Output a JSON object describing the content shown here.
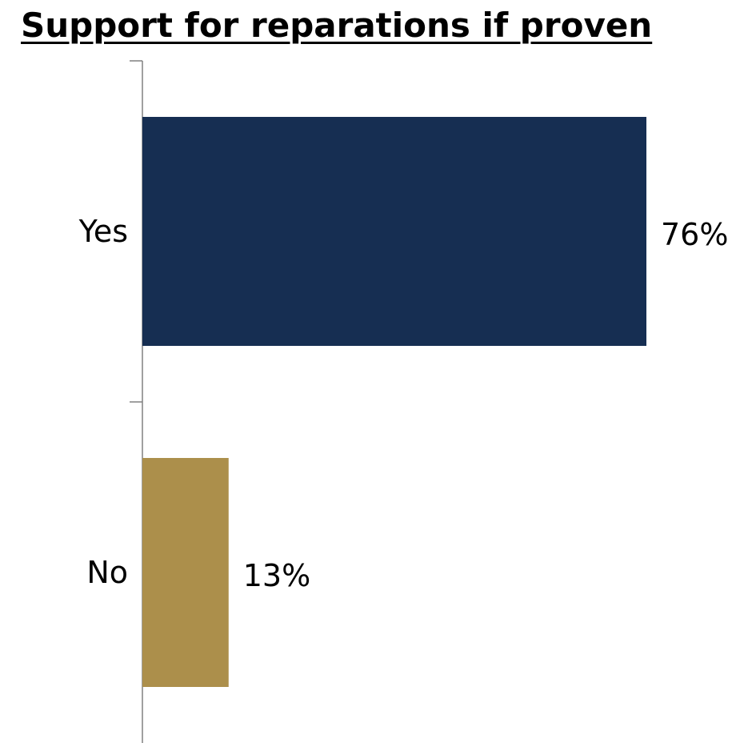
{
  "chart_data": {
    "type": "bar",
    "orientation": "horizontal",
    "title": "Support for reparations if proven",
    "categories": [
      "Yes",
      "No"
    ],
    "values": [
      76,
      13
    ],
    "value_labels": [
      "76%",
      "13%"
    ],
    "colors": [
      "#162e52",
      "#ac8f4b"
    ],
    "xlabel": "",
    "ylabel": "",
    "xlim": [
      0,
      91
    ],
    "grid": false,
    "legend": "none"
  }
}
